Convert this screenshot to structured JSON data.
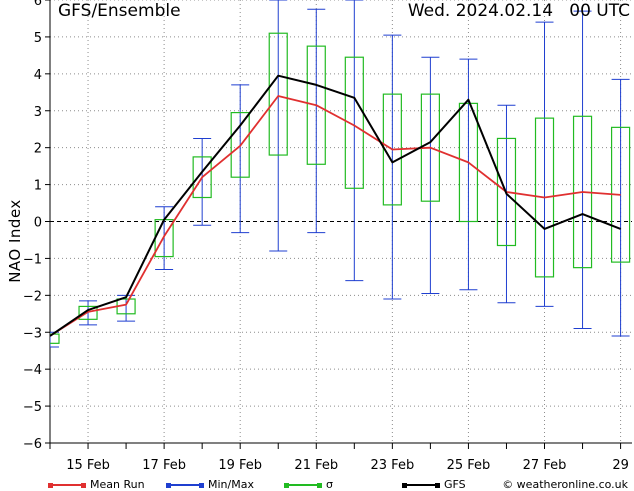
{
  "header": {
    "title": "GFS/Ensemble",
    "datetime": "Wed. 2024.02.14   00 UTC"
  },
  "legend": {
    "mean_run": "Mean Run",
    "min_max": "Min/Max",
    "sigma": "σ",
    "gfs": "GFS"
  },
  "copyright": "© weatheronline.co.uk",
  "colors": {
    "mean_run": "#e03030",
    "min_max": "#1f3fd0",
    "sigma": "#22bb22",
    "gfs": "#000000",
    "grid": "#8c8c8c"
  },
  "chart_data": {
    "type": "line",
    "ylabel": "NAO Index",
    "ylim": [
      -6,
      6
    ],
    "yticks": [
      -6,
      -5,
      -4,
      -3,
      -2,
      -1,
      0,
      1,
      2,
      3,
      4,
      5,
      6
    ],
    "xlim": [
      14.0,
      29.3
    ],
    "xticks": [
      {
        "value": 15,
        "label": "15 Feb"
      },
      {
        "value": 17,
        "label": "17 Feb"
      },
      {
        "value": 19,
        "label": "19 Feb"
      },
      {
        "value": 21,
        "label": "21 Feb"
      },
      {
        "value": 23,
        "label": "23 Feb"
      },
      {
        "value": 25,
        "label": "25 Feb"
      },
      {
        "value": 27,
        "label": "27 Feb"
      },
      {
        "value": 29,
        "label": "29"
      }
    ],
    "grid": true,
    "days": [
      14,
      15,
      16,
      17,
      18,
      19,
      20,
      21,
      22,
      23,
      24,
      25,
      26,
      27,
      28,
      29
    ],
    "series": [
      {
        "name": "Mean Run",
        "values": [
          -3.1,
          -2.45,
          -2.25,
          -0.4,
          1.2,
          2.05,
          3.4,
          3.15,
          2.6,
          1.95,
          2.0,
          1.6,
          0.8,
          0.65,
          0.8,
          0.72
        ]
      },
      {
        "name": "GFS",
        "values": [
          -3.1,
          -2.4,
          -2.05,
          0.05,
          1.35,
          2.6,
          3.95,
          3.7,
          3.35,
          1.6,
          2.15,
          3.3,
          0.75,
          -0.2,
          0.2,
          -0.2
        ]
      }
    ],
    "min_max": {
      "min": [
        -3.4,
        -2.8,
        -2.7,
        -1.3,
        -0.1,
        -0.3,
        -0.8,
        -0.3,
        -1.6,
        -2.1,
        -1.95,
        -1.85,
        -2.2,
        -2.3,
        -2.9,
        -3.1
      ],
      "max": [
        -3.0,
        -2.15,
        -2.0,
        0.4,
        2.25,
        3.7,
        6.0,
        5.75,
        6.0,
        5.05,
        4.45,
        4.4,
        3.15,
        5.4,
        5.7,
        3.85
      ]
    },
    "sigma": {
      "low": [
        -3.3,
        -2.65,
        -2.5,
        -0.95,
        0.65,
        1.2,
        1.8,
        1.55,
        0.9,
        0.45,
        0.55,
        0.0,
        -0.65,
        -1.5,
        -1.25,
        -1.1
      ],
      "high": [
        -3.05,
        -2.3,
        -2.1,
        0.05,
        1.75,
        2.95,
        5.1,
        4.75,
        4.45,
        3.45,
        3.45,
        3.2,
        2.25,
        2.8,
        2.85,
        2.55
      ]
    }
  }
}
